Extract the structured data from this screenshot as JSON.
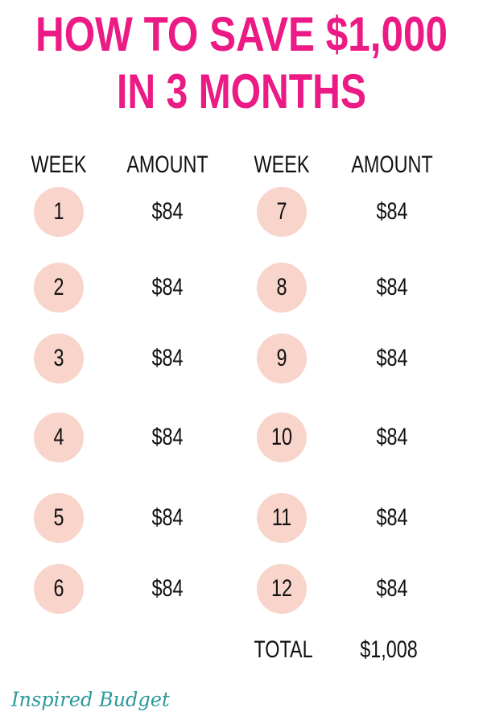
{
  "header": {
    "title_line1": "HOW TO SAVE $1,000",
    "title_line2": "IN 3 MONTHS"
  },
  "table": {
    "columns": [
      "WEEK",
      "AMOUNT",
      "WEEK",
      "AMOUNT"
    ],
    "rows": [
      {
        "week": 1,
        "amount": "$84"
      },
      {
        "week": 2,
        "amount": "$84"
      },
      {
        "week": 3,
        "amount": "$84"
      },
      {
        "week": 4,
        "amount": "$84"
      },
      {
        "week": 5,
        "amount": "$84"
      },
      {
        "week": 6,
        "amount": "$84"
      },
      {
        "week": 7,
        "amount": "$84"
      },
      {
        "week": 8,
        "amount": "$84"
      },
      {
        "week": 9,
        "amount": "$84"
      },
      {
        "week": 10,
        "amount": "$84"
      },
      {
        "week": 11,
        "amount": "$84"
      },
      {
        "week": 12,
        "amount": "$84"
      }
    ],
    "total_label": "TOTAL",
    "total_value": "$1,008"
  },
  "footer": {
    "brand": "Inspired Budget"
  }
}
